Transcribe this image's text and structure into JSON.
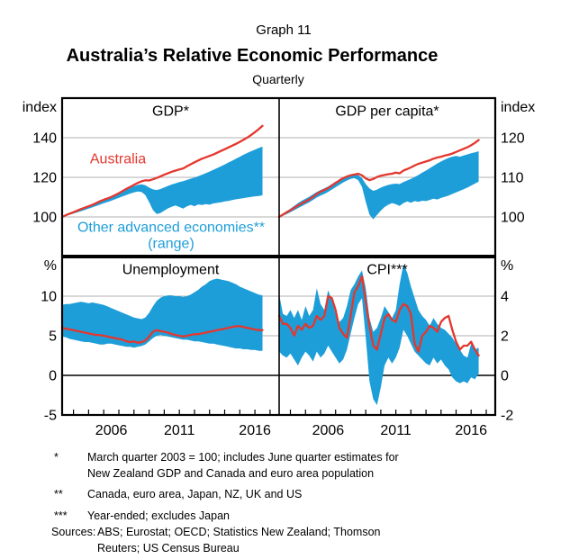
{
  "header": {
    "graph_number": "Graph 11",
    "title": "Australia’s Relative Economic Performance",
    "subtitle": "Quarterly"
  },
  "colors": {
    "australia_red": "#e4372e",
    "range_blue": "#1e9ed9",
    "gridline": "#b0b0b0",
    "frame": "#000000"
  },
  "footnotes": [
    {
      "marker": "*",
      "lines": [
        "March quarter 2003 = 100; includes June quarter estimates for",
        "New Zealand GDP and Canada and euro area population"
      ]
    },
    {
      "marker": "**",
      "lines": [
        "Canada, euro area, Japan, NZ, UK and US"
      ]
    },
    {
      "marker": "***",
      "lines": [
        "Year-ended; excludes Japan"
      ]
    }
  ],
  "sources": {
    "label": "Sources:",
    "lines": [
      "ABS; Eurostat; OECD; Statistics New Zealand; Thomson",
      "Reuters; US Census Bureau"
    ]
  },
  "chart_data": {
    "type": "area",
    "title": "Australia’s Relative Economic Performance",
    "subtitle": "Quarterly",
    "x_start": 2003.25,
    "x_step": 0.25,
    "x_axis": {
      "tick_years": [
        2004,
        2005,
        2006,
        2007,
        2008,
        2009,
        2010,
        2011,
        2012,
        2013,
        2014,
        2015,
        2016,
        2017
      ],
      "labels": [
        "2006",
        "2011",
        "2016"
      ]
    },
    "annotations": {
      "australia": "Australia",
      "range_line1": "Other advanced economies**",
      "range_line2": "(range)"
    },
    "panels": [
      {
        "id": "gdp",
        "title": "GDP*",
        "y_axis": {
          "unit": "index",
          "side": "left",
          "range": [
            80,
            160
          ],
          "gridlines": [
            100,
            120,
            140
          ],
          "zero_line": false,
          "ticks": [
            {
              "value": 100,
              "label": "100"
            },
            {
              "value": 120,
              "label": "120"
            },
            {
              "value": 140,
              "label": "140"
            }
          ]
        },
        "series": {
          "australia": [
            100.0,
            100.9,
            101.7,
            102.4,
            103.2,
            104.0,
            104.7,
            105.4,
            106.1,
            107.0,
            107.9,
            108.7,
            109.3,
            110.1,
            111.0,
            112.0,
            113.1,
            114.2,
            115.2,
            116.2,
            117.2,
            118.0,
            118.5,
            118.4,
            119.0,
            119.7,
            120.5,
            121.3,
            122.1,
            122.8,
            123.4,
            124.0,
            124.5,
            125.6,
            126.6,
            127.6,
            128.5,
            129.4,
            130.1,
            130.8,
            131.5,
            132.4,
            133.3,
            134.2,
            135.1,
            136.0,
            136.9,
            137.9,
            139.0,
            140.1,
            141.4,
            142.8,
            144.3,
            146.0
          ],
          "range_high": [
            100.0,
            100.8,
            101.7,
            102.5,
            103.3,
            104.2,
            105.0,
            105.8,
            106.5,
            107.3,
            108.2,
            109.0,
            109.7,
            110.5,
            111.4,
            112.3,
            113.2,
            114.1,
            114.9,
            115.6,
            116.2,
            116.5,
            116.0,
            114.8,
            113.9,
            113.6,
            114.1,
            114.9,
            115.7,
            116.4,
            117.0,
            117.6,
            118.1,
            118.7,
            119.3,
            119.9,
            120.6,
            121.3,
            122.1,
            122.9,
            123.8,
            124.7,
            125.6,
            126.5,
            127.5,
            128.4,
            129.4,
            130.4,
            131.4,
            132.3,
            133.2,
            134.0,
            134.8,
            135.5
          ],
          "range_low": [
            100.0,
            100.5,
            101.1,
            101.7,
            102.3,
            102.9,
            103.5,
            104.2,
            104.8,
            105.5,
            106.2,
            106.9,
            107.5,
            108.2,
            108.9,
            109.7,
            110.4,
            111.1,
            111.8,
            112.4,
            112.8,
            112.6,
            111.0,
            107.5,
            103.5,
            101.5,
            102.0,
            103.2,
            104.3,
            105.2,
            105.8,
            105.0,
            104.2,
            105.3,
            106.1,
            105.4,
            106.3,
            106.0,
            106.5,
            106.2,
            106.8,
            107.1,
            107.4,
            107.8,
            108.1,
            108.5,
            108.9,
            109.2,
            109.5,
            109.8,
            110.1,
            110.4,
            110.6,
            110.9
          ]
        }
      },
      {
        "id": "gdppc",
        "title": "GDP per capita*",
        "y_axis": {
          "unit": "index",
          "side": "right",
          "range": [
            90,
            130
          ],
          "gridlines": [
            100,
            110,
            120
          ],
          "zero_line": false,
          "ticks": [
            {
              "value": 100,
              "label": "100"
            },
            {
              "value": 110,
              "label": "110"
            },
            {
              "value": 120,
              "label": "120"
            }
          ]
        },
        "series": {
          "australia": [
            100.0,
            100.6,
            101.2,
            101.7,
            102.3,
            102.9,
            103.4,
            103.9,
            104.4,
            105.1,
            105.8,
            106.4,
            106.8,
            107.3,
            107.9,
            108.6,
            109.2,
            109.8,
            110.2,
            110.5,
            110.7,
            110.9,
            110.5,
            109.7,
            109.3,
            109.6,
            110.1,
            110.4,
            110.6,
            110.8,
            110.9,
            111.2,
            111.0,
            111.7,
            112.1,
            112.5,
            113.0,
            113.4,
            113.7,
            114.0,
            114.3,
            114.7,
            115.0,
            115.2,
            115.5,
            115.7,
            116.0,
            116.4,
            116.8,
            117.2,
            117.6,
            118.1,
            118.7,
            119.4
          ],
          "range_high": [
            100.0,
            100.7,
            101.4,
            102.1,
            102.8,
            103.5,
            104.1,
            104.6,
            105.1,
            105.7,
            106.3,
            106.8,
            107.2,
            107.7,
            108.3,
            108.9,
            109.4,
            110.0,
            110.4,
            110.7,
            110.8,
            110.6,
            109.8,
            108.3,
            107.2,
            106.6,
            106.9,
            107.4,
            107.8,
            108.1,
            108.3,
            108.4,
            108.3,
            108.8,
            109.2,
            109.6,
            110.1,
            110.6,
            111.2,
            111.7,
            112.3,
            112.9,
            113.5,
            114.0,
            114.5,
            114.9,
            115.2,
            115.4,
            115.2,
            115.5,
            115.8,
            116.1,
            116.3,
            116.6
          ],
          "range_low": [
            100.0,
            100.3,
            100.7,
            101.2,
            101.7,
            102.2,
            102.7,
            103.2,
            103.7,
            104.3,
            104.9,
            105.4,
            105.8,
            106.3,
            106.9,
            107.5,
            108.1,
            108.7,
            109.2,
            109.6,
            109.8,
            109.3,
            107.6,
            103.8,
            100.6,
            99.4,
            100.5,
            101.6,
            102.5,
            103.1,
            103.5,
            103.2,
            102.8,
            103.5,
            103.9,
            103.6,
            104.0,
            103.8,
            104.1,
            104.0,
            104.3,
            104.6,
            104.4,
            104.8,
            105.1,
            105.4,
            105.8,
            106.2,
            106.6,
            107.0,
            107.4,
            107.9,
            108.4,
            108.9
          ]
        }
      },
      {
        "id": "unemp",
        "title": "Unemployment",
        "y_axis": {
          "unit": "%",
          "side": "left",
          "range": [
            -5,
            15
          ],
          "gridlines": [
            5,
            10
          ],
          "zero_line": true,
          "ticks": [
            {
              "value": -5,
              "label": "-5"
            },
            {
              "value": 0,
              "label": "0"
            },
            {
              "value": 5,
              "label": "5"
            },
            {
              "value": 10,
              "label": "10"
            }
          ]
        },
        "series": {
          "australia": [
            6.0,
            5.9,
            5.8,
            5.7,
            5.6,
            5.5,
            5.4,
            5.3,
            5.2,
            5.1,
            5.1,
            5.0,
            4.9,
            4.8,
            4.7,
            4.6,
            4.5,
            4.3,
            4.2,
            4.3,
            4.1,
            4.2,
            4.4,
            4.9,
            5.5,
            5.7,
            5.6,
            5.5,
            5.4,
            5.2,
            5.1,
            5.0,
            4.9,
            5.0,
            5.1,
            5.2,
            5.2,
            5.3,
            5.4,
            5.5,
            5.6,
            5.7,
            5.8,
            5.9,
            6.0,
            6.1,
            6.2,
            6.2,
            6.1,
            6.0,
            5.9,
            5.8,
            5.7,
            5.7
          ],
          "range_high": [
            8.9,
            9.0,
            9.0,
            9.1,
            9.2,
            9.3,
            9.2,
            9.1,
            9.2,
            9.1,
            9.0,
            8.9,
            8.7,
            8.5,
            8.3,
            8.1,
            7.9,
            7.7,
            7.5,
            7.3,
            7.2,
            7.1,
            7.3,
            7.9,
            8.7,
            9.4,
            9.8,
            10.0,
            10.1,
            10.1,
            10.0,
            10.0,
            9.9,
            10.0,
            10.2,
            10.5,
            10.8,
            11.2,
            11.5,
            11.9,
            12.1,
            12.2,
            12.1,
            12.0,
            11.9,
            11.7,
            11.5,
            11.2,
            11.0,
            10.8,
            10.6,
            10.4,
            10.2,
            10.1
          ],
          "range_low": [
            4.9,
            4.8,
            4.6,
            4.5,
            4.4,
            4.3,
            4.2,
            4.2,
            4.1,
            4.0,
            3.9,
            3.9,
            4.0,
            4.0,
            3.9,
            3.8,
            3.7,
            3.6,
            3.6,
            3.5,
            3.6,
            3.7,
            3.9,
            4.3,
            4.7,
            5.0,
            5.1,
            5.0,
            4.9,
            4.8,
            4.7,
            4.6,
            4.5,
            4.5,
            4.4,
            4.3,
            4.3,
            4.2,
            4.1,
            4.0,
            4.0,
            3.9,
            3.8,
            3.7,
            3.6,
            3.5,
            3.4,
            3.4,
            3.3,
            3.3,
            3.2,
            3.2,
            3.1,
            3.1
          ]
        }
      },
      {
        "id": "cpi",
        "title": "CPI***",
        "y_axis": {
          "unit": "%",
          "side": "right",
          "range": [
            -2,
            6
          ],
          "gridlines": [
            2,
            4
          ],
          "zero_line": true,
          "ticks": [
            {
              "value": -2,
              "label": "-2"
            },
            {
              "value": 0,
              "label": "0"
            },
            {
              "value": 2,
              "label": "2"
            },
            {
              "value": 4,
              "label": "4"
            }
          ]
        },
        "series": {
          "australia": [
            3.0,
            2.6,
            2.6,
            2.4,
            2.0,
            2.5,
            2.3,
            2.6,
            2.4,
            2.5,
            3.0,
            2.8,
            3.0,
            4.0,
            3.9,
            3.3,
            2.4,
            2.1,
            1.9,
            3.0,
            4.2,
            4.5,
            5.0,
            3.7,
            2.5,
            1.5,
            1.3,
            2.1,
            2.9,
            3.1,
            2.8,
            2.7,
            3.3,
            3.6,
            3.5,
            3.1,
            1.6,
            1.2,
            2.0,
            2.2,
            2.5,
            2.4,
            2.2,
            2.7,
            2.9,
            3.0,
            2.3,
            1.7,
            1.3,
            1.5,
            1.5,
            1.7,
            1.3,
            1.0
          ],
          "range_high": [
            4.1,
            3.1,
            3.0,
            3.3,
            2.9,
            3.3,
            2.8,
            3.5,
            3.0,
            3.3,
            4.4,
            3.6,
            3.3,
            4.3,
            3.8,
            3.1,
            2.7,
            2.9,
            3.5,
            4.3,
            4.6,
            5.0,
            5.3,
            4.4,
            2.9,
            2.2,
            2.4,
            2.9,
            3.5,
            3.2,
            2.9,
            3.3,
            4.6,
            5.6,
            5.2,
            4.5,
            3.9,
            3.3,
            3.0,
            2.8,
            2.5,
            2.9,
            2.6,
            2.4,
            2.3,
            2.1,
            1.9,
            1.6,
            1.3,
            1.0,
            0.9,
            1.6,
            1.3,
            1.4
          ],
          "range_low": [
            1.2,
            1.0,
            0.9,
            1.1,
            0.8,
            0.5,
            0.9,
            1.2,
            1.0,
            0.7,
            1.2,
            0.9,
            1.1,
            1.5,
            1.2,
            0.9,
            0.6,
            0.8,
            1.3,
            2.1,
            2.9,
            3.6,
            3.9,
            1.9,
            -0.3,
            -1.2,
            -1.5,
            -0.6,
            0.5,
            0.9,
            0.6,
            0.9,
            1.4,
            2.3,
            2.0,
            1.6,
            1.2,
            1.0,
            0.8,
            0.6,
            0.5,
            0.9,
            0.6,
            0.8,
            0.5,
            0.3,
            -0.1,
            -0.3,
            -0.4,
            -0.3,
            -0.4,
            -0.1,
            -0.2,
            0.1
          ]
        }
      }
    ]
  }
}
